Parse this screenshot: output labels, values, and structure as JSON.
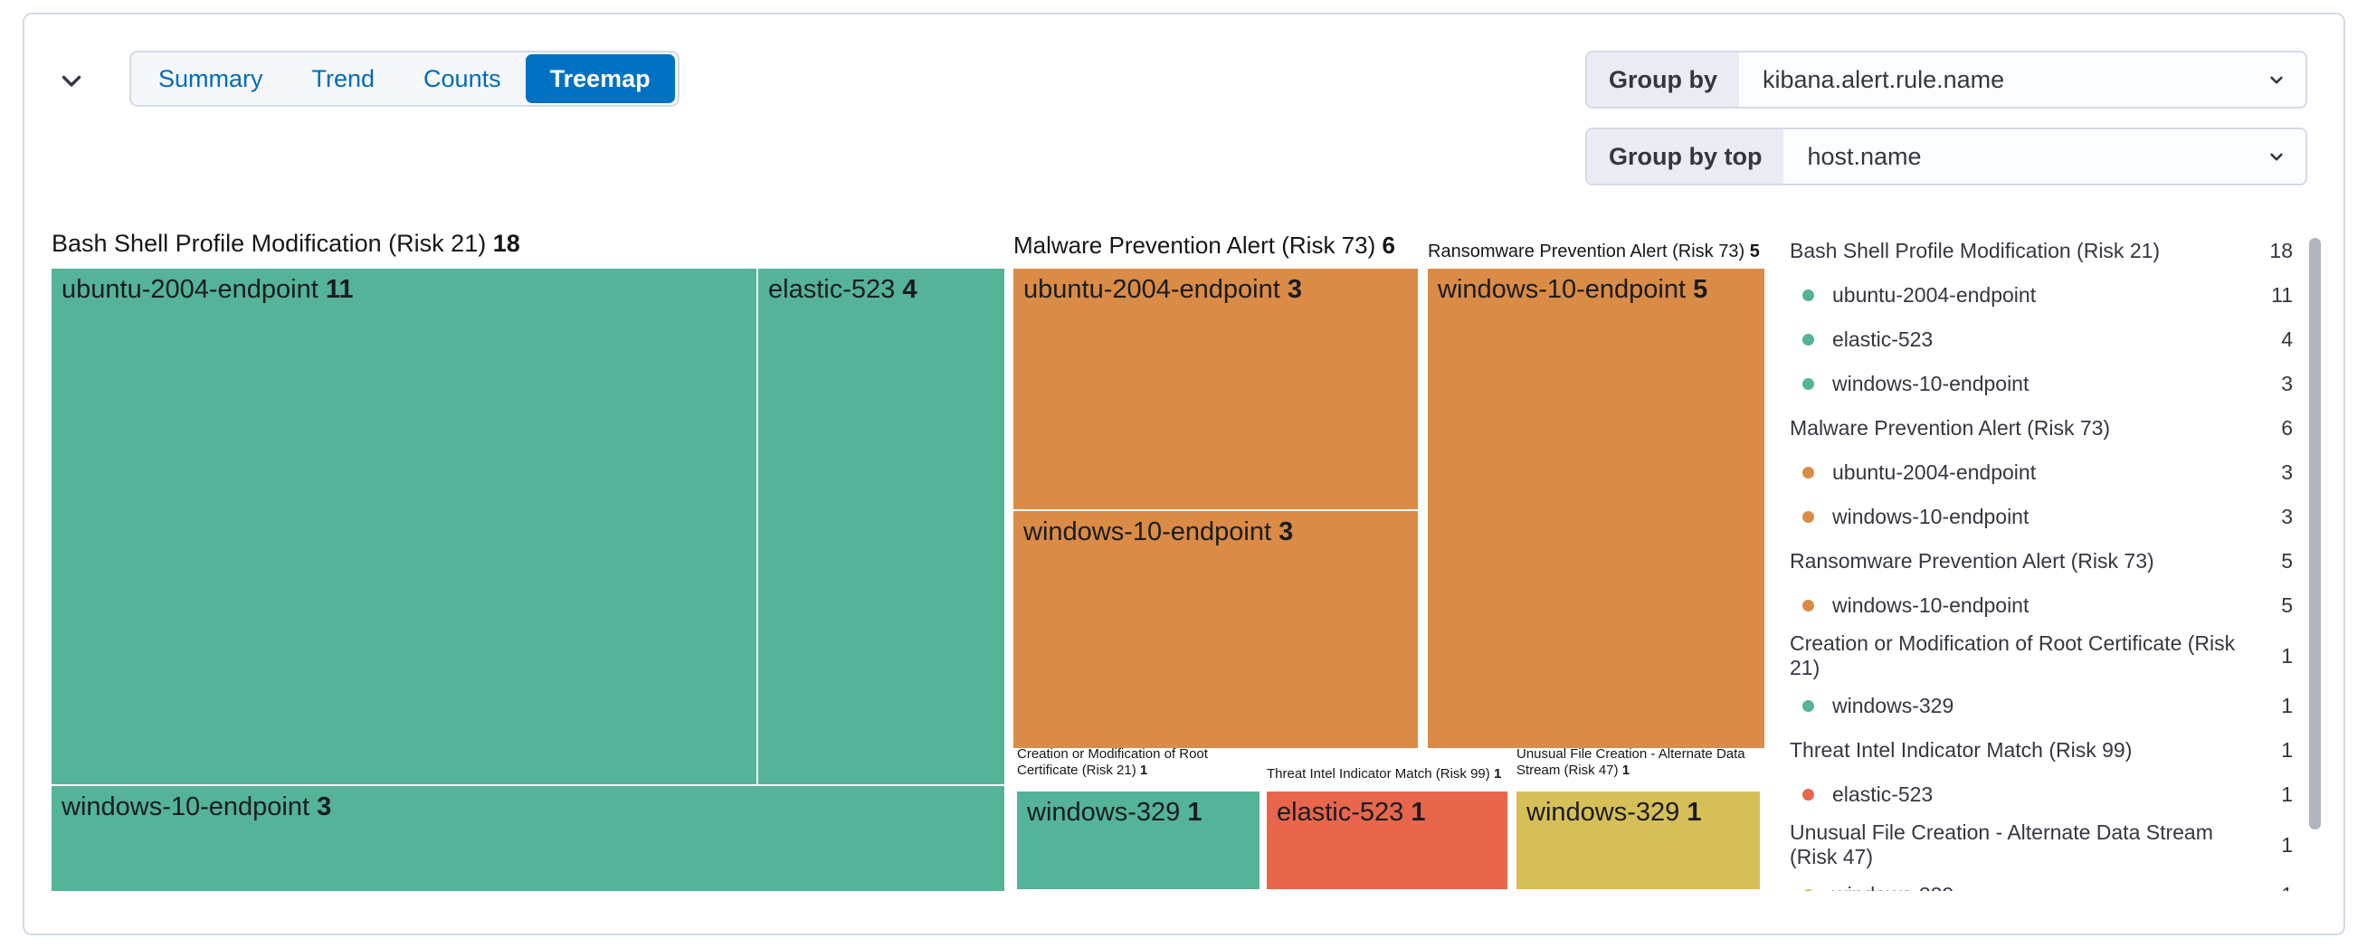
{
  "tabs": {
    "items": [
      {
        "label": "Summary",
        "selected": false
      },
      {
        "label": "Trend",
        "selected": false
      },
      {
        "label": "Counts",
        "selected": false
      },
      {
        "label": "Treemap",
        "selected": true
      }
    ]
  },
  "controls": {
    "group_by": {
      "label": "Group by",
      "value": "kibana.alert.rule.name"
    },
    "group_by_top": {
      "label": "Group by top",
      "value": "host.name"
    }
  },
  "icons": {
    "collapse": "chevron-down",
    "select_caret": "chevron-down"
  },
  "colors": {
    "green": "#54B399",
    "orange": "#DA8B45",
    "red": "#E7664C",
    "yellow": "#D6BF57",
    "selected_tab": "#0071C2",
    "panel_border": "#D3DAE6",
    "scroll_thumb": "#AEB5C0"
  },
  "chart_data": {
    "type": "treemap",
    "groups": [
      {
        "name": "Bash Shell Profile Modification (Risk 21)",
        "value": 18,
        "color": "#54B399",
        "children": [
          {
            "name": "ubuntu-2004-endpoint",
            "value": 11
          },
          {
            "name": "elastic-523",
            "value": 4
          },
          {
            "name": "windows-10-endpoint",
            "value": 3
          }
        ]
      },
      {
        "name": "Malware Prevention Alert (Risk 73)",
        "value": 6,
        "color": "#DA8B45",
        "children": [
          {
            "name": "ubuntu-2004-endpoint",
            "value": 3
          },
          {
            "name": "windows-10-endpoint",
            "value": 3
          }
        ]
      },
      {
        "name": "Ransomware Prevention Alert (Risk 73)",
        "value": 5,
        "color": "#DA8B45",
        "children": [
          {
            "name": "windows-10-endpoint",
            "value": 5
          }
        ]
      },
      {
        "name": "Creation or Modification of Root Certificate (Risk 21)",
        "value": 1,
        "color": "#54B399",
        "children": [
          {
            "name": "windows-329",
            "value": 1
          }
        ]
      },
      {
        "name": "Threat Intel Indicator Match (Risk 99)",
        "value": 1,
        "color": "#E7664C",
        "children": [
          {
            "name": "elastic-523",
            "value": 1
          }
        ]
      },
      {
        "name": "Unusual File Creation - Alternate Data Stream (Risk 47)",
        "value": 1,
        "color": "#D6BF57",
        "children": [
          {
            "name": "windows-329",
            "value": 1
          }
        ]
      }
    ],
    "legend_position": "right"
  }
}
